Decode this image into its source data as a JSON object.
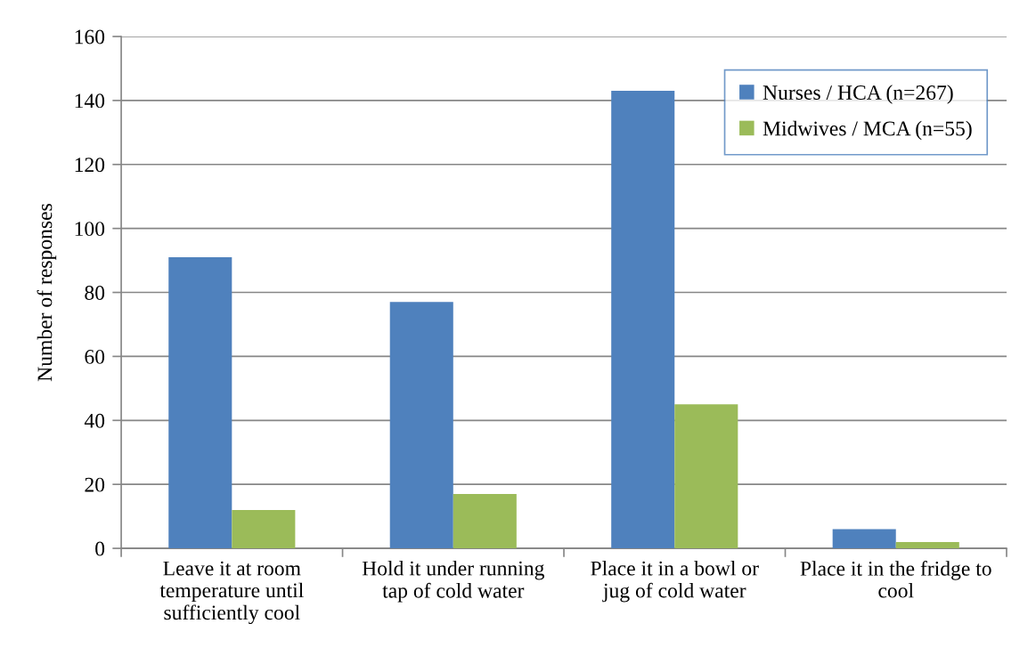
{
  "chart_data": {
    "type": "bar",
    "categories": [
      "Leave it at room\ntemperature until\nsufficiently cool",
      "Hold it under running\ntap of cold water",
      "Place it in a bowl or\njug of cold water",
      "Place it in the fridge to\ncool"
    ],
    "series": [
      {
        "name": "Nurses / HCA (n=267)",
        "color": "#4f81bd",
        "values": [
          91,
          77,
          143,
          6
        ]
      },
      {
        "name": "Midwives / MCA (n=55)",
        "color": "#9bbb59",
        "values": [
          12,
          17,
          45,
          2
        ]
      }
    ],
    "ylabel": "Number of responses",
    "ylim": [
      0,
      160
    ],
    "yticks": [
      0,
      20,
      40,
      60,
      80,
      100,
      120,
      140,
      160
    ],
    "grid": "y",
    "legend": "top right"
  }
}
